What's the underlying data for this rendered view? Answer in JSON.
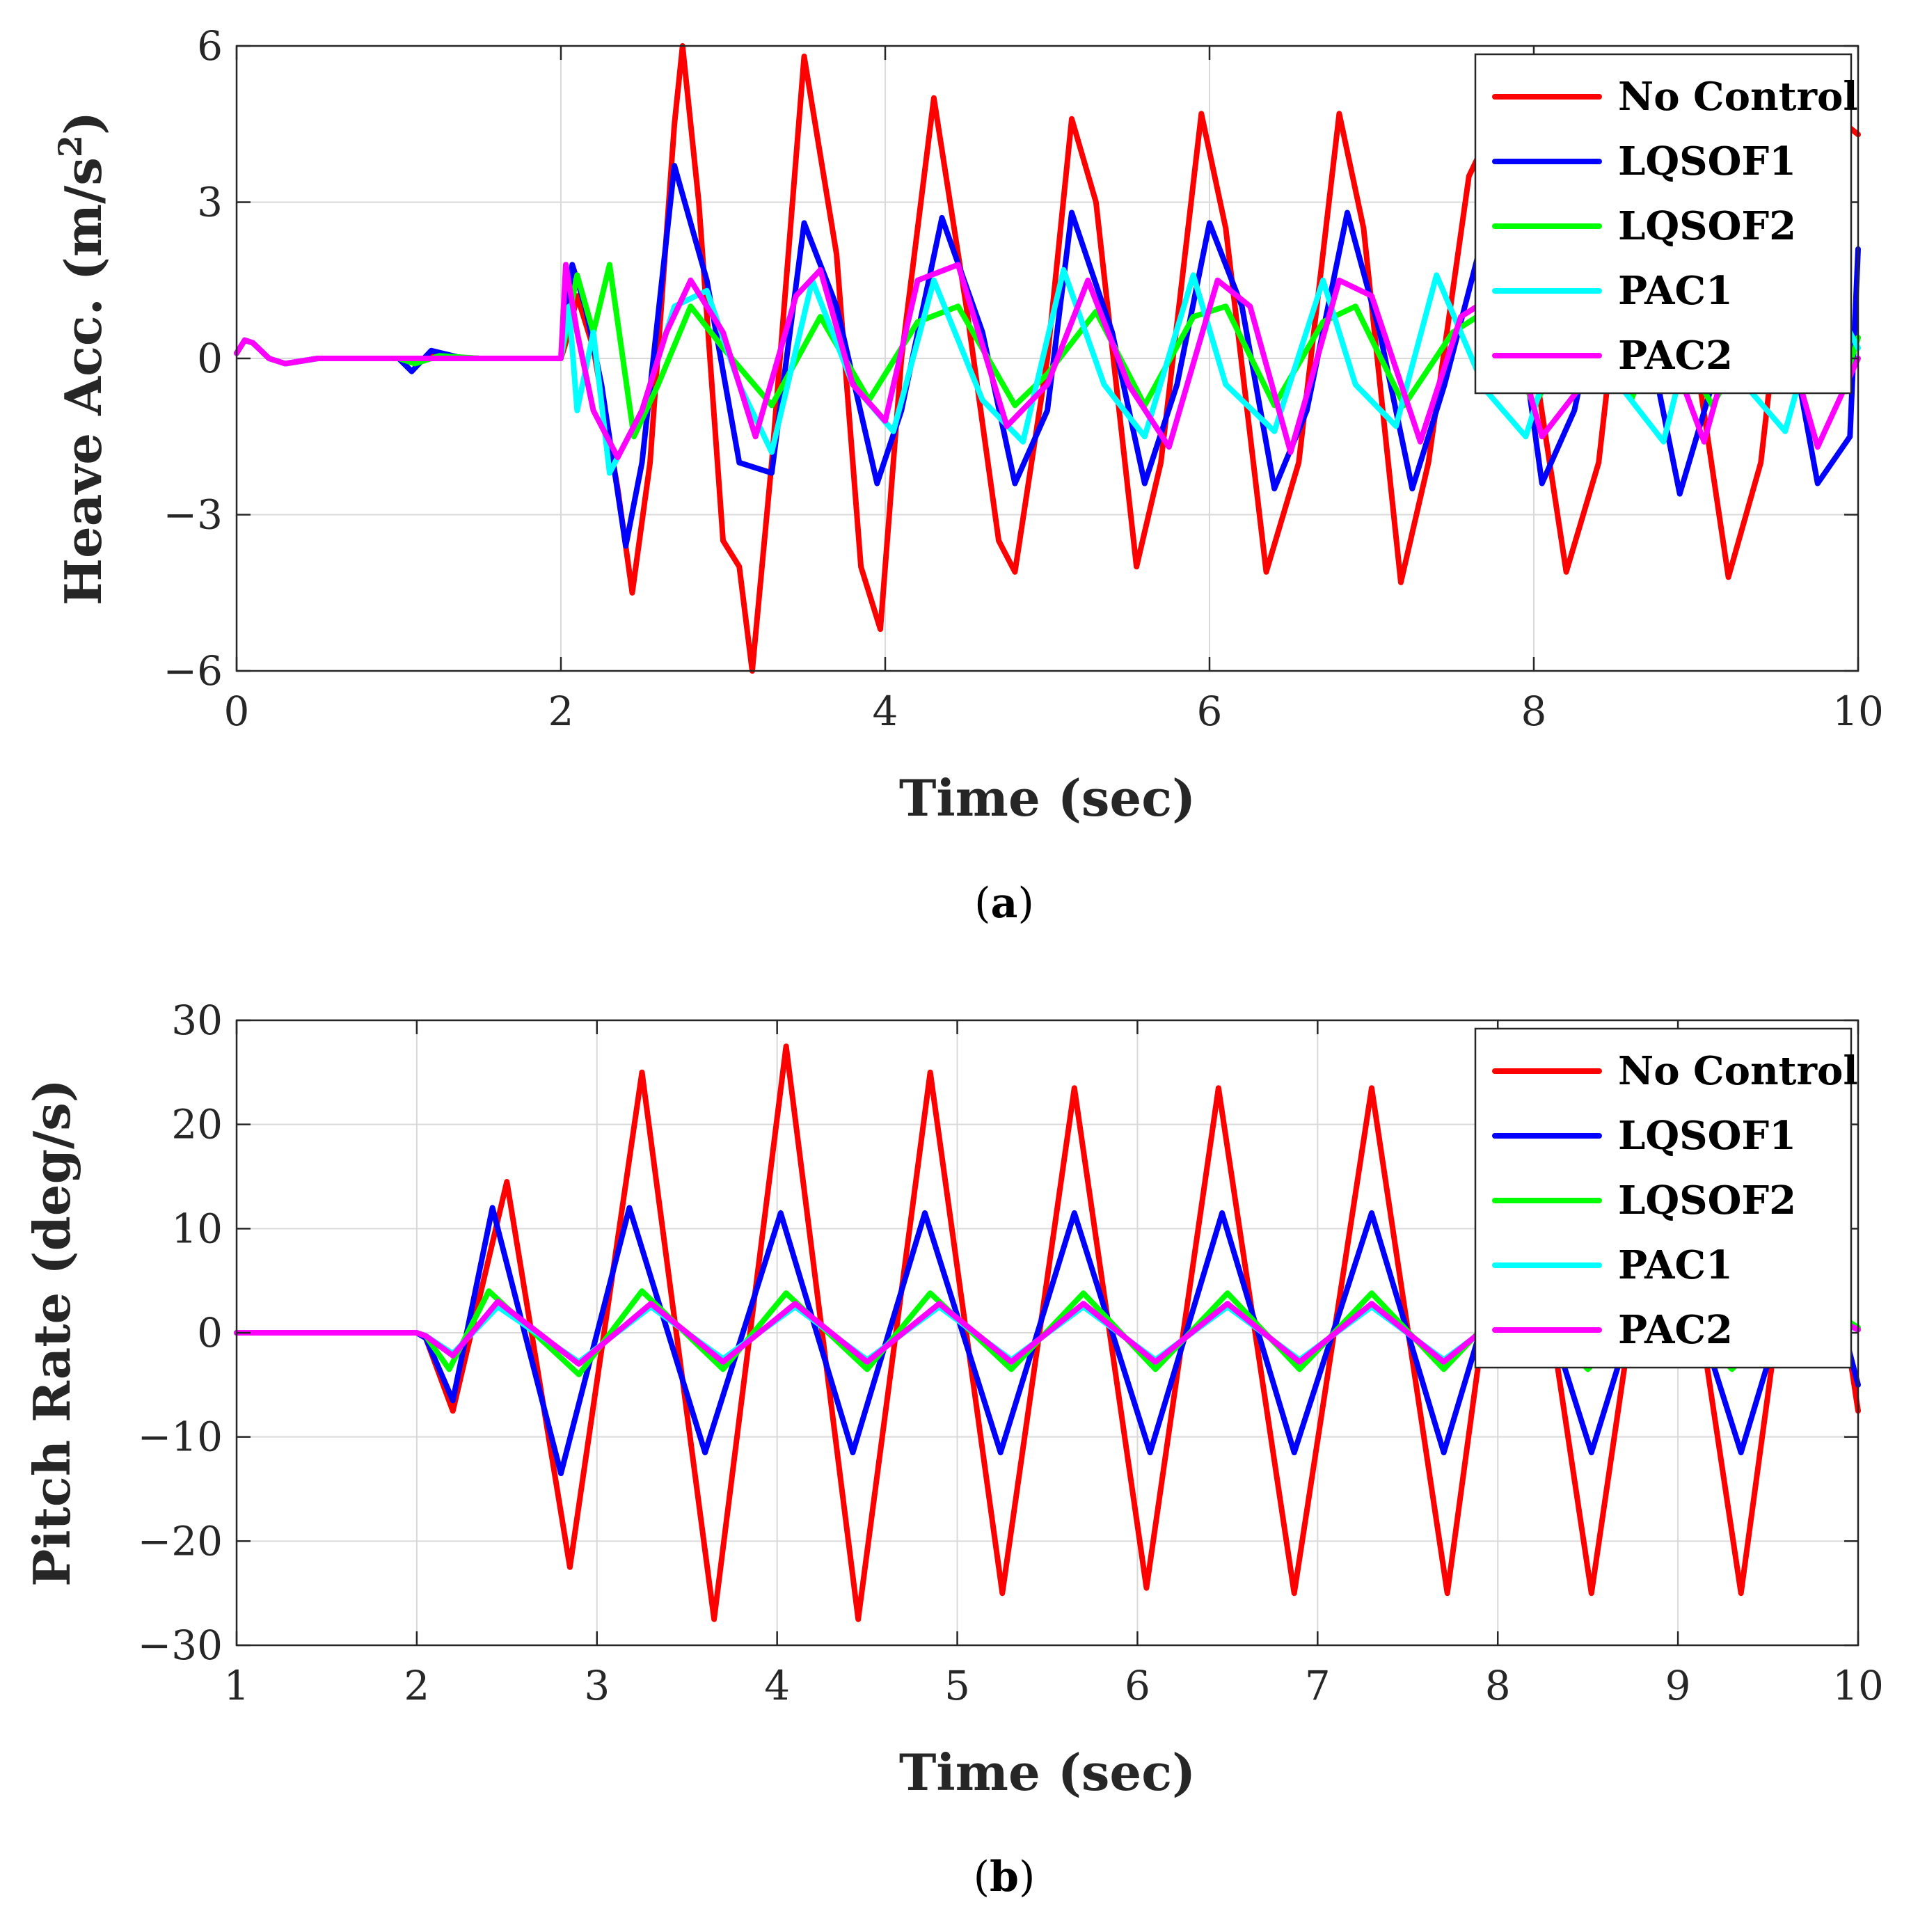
{
  "chart_data": [
    {
      "id": "a",
      "type": "line",
      "caption": {
        "open": "(",
        "letter": "a",
        "close": ")"
      },
      "xlabel": "Time (sec)",
      "ylabel": "Heave Acc. (m/s",
      "ylabel_sup": "2",
      "ylabel_end": ")",
      "xlim": [
        0,
        10
      ],
      "ylim": [
        -6,
        6
      ],
      "xticks": [
        0,
        2,
        4,
        6,
        8,
        10
      ],
      "xtick_labels": [
        "0",
        "2",
        "4",
        "6",
        "8",
        "10"
      ],
      "yticks": [
        -6,
        -3,
        0,
        3,
        6
      ],
      "ytick_labels": [
        "−6",
        "−3",
        "0",
        "3",
        "6"
      ],
      "grid": true,
      "legend_position": "top-right",
      "series": [
        {
          "name": "No Control",
          "color": "#ff0000",
          "x": [
            0,
            0.05,
            0.1,
            0.2,
            0.3,
            0.5,
            1.0,
            1.1,
            1.2,
            1.5,
            2.0,
            2.05,
            2.1,
            2.2,
            2.35,
            2.44,
            2.55,
            2.7,
            2.75,
            2.85,
            3.0,
            3.1,
            3.18,
            3.3,
            3.5,
            3.7,
            3.85,
            3.97,
            4.1,
            4.3,
            4.5,
            4.7,
            4.8,
            5.0,
            5.15,
            5.3,
            5.55,
            5.7,
            5.95,
            6.1,
            6.35,
            6.55,
            6.8,
            6.95,
            7.18,
            7.35,
            7.6,
            7.8,
            8.0,
            8.2,
            8.4,
            8.6,
            8.8,
            9.0,
            9.2,
            9.4,
            9.6,
            9.8,
            10.0
          ],
          "y": [
            0.1,
            0.35,
            0.3,
            0.0,
            -0.1,
            0.0,
            0.0,
            -0.1,
            0.05,
            0.0,
            0.0,
            0.5,
            1.2,
            0.2,
            -2.5,
            -4.5,
            -2.0,
            4.5,
            6.0,
            3.0,
            -3.5,
            -4.0,
            -6.0,
            -2.0,
            5.8,
            2.0,
            -4.0,
            -5.2,
            0.0,
            5.0,
            1.0,
            -3.5,
            -4.1,
            0.0,
            4.6,
            3.0,
            -4.0,
            -2.0,
            4.7,
            2.5,
            -4.1,
            -2.0,
            4.7,
            2.5,
            -4.3,
            -2.0,
            3.5,
            4.8,
            0.0,
            -4.1,
            -2.0,
            3.5,
            4.8,
            0.0,
            -4.2,
            -2.0,
            3.5,
            4.8,
            4.3
          ]
        },
        {
          "name": "LQSOF1",
          "color": "#0000ff",
          "x": [
            0,
            0.05,
            0.1,
            0.2,
            0.3,
            0.5,
            1.0,
            1.08,
            1.2,
            1.4,
            2.0,
            2.07,
            2.15,
            2.25,
            2.4,
            2.5,
            2.7,
            2.9,
            3.1,
            3.3,
            3.5,
            3.7,
            3.95,
            4.1,
            4.35,
            4.6,
            4.8,
            5.0,
            5.15,
            5.4,
            5.6,
            5.8,
            6.0,
            6.2,
            6.4,
            6.6,
            6.85,
            7.05,
            7.25,
            7.45,
            7.7,
            7.9,
            8.05,
            8.25,
            8.5,
            8.7,
            8.9,
            9.1,
            9.35,
            9.55,
            9.75,
            9.95,
            10.0
          ],
          "y": [
            0.1,
            0.35,
            0.3,
            0.0,
            -0.1,
            0.0,
            0.0,
            -0.25,
            0.15,
            0.0,
            0.0,
            1.8,
            1.0,
            -0.5,
            -3.6,
            -2.0,
            3.7,
            1.5,
            -2.0,
            -2.2,
            2.6,
            1.0,
            -2.4,
            -1.0,
            2.7,
            0.5,
            -2.4,
            -1.0,
            2.8,
            0.5,
            -2.4,
            -0.5,
            2.6,
            1.0,
            -2.5,
            -1.0,
            2.8,
            0.5,
            -2.5,
            -0.5,
            2.5,
            1.0,
            -2.4,
            -1.0,
            2.7,
            0.5,
            -2.6,
            -0.5,
            2.5,
            1.0,
            -2.4,
            -1.5,
            2.1
          ]
        },
        {
          "name": "LQSOF2",
          "color": "#00ff00",
          "x": [
            0,
            0.05,
            0.1,
            0.2,
            0.3,
            0.5,
            1.0,
            1.1,
            1.25,
            1.5,
            2.0,
            2.1,
            2.2,
            2.3,
            2.45,
            2.6,
            2.8,
            3.0,
            3.3,
            3.6,
            3.9,
            4.2,
            4.45,
            4.8,
            5.0,
            5.3,
            5.6,
            5.9,
            6.1,
            6.4,
            6.7,
            6.9,
            7.2,
            7.5,
            7.75,
            8.0,
            8.3,
            8.6,
            8.8,
            9.1,
            9.4,
            9.6,
            9.9,
            10.0
          ],
          "y": [
            0.1,
            0.35,
            0.3,
            0.0,
            -0.1,
            0.0,
            0.0,
            -0.1,
            0.05,
            0.0,
            0.0,
            1.6,
            0.5,
            1.8,
            -1.5,
            -0.5,
            1.0,
            0.2,
            -0.9,
            0.8,
            -0.8,
            0.7,
            1.0,
            -0.9,
            -0.3,
            0.9,
            -0.9,
            0.8,
            1.0,
            -0.9,
            0.7,
            1.0,
            -0.9,
            0.5,
            1.0,
            -0.9,
            0.7,
            -0.8,
            0.8,
            -0.9,
            0.7,
            0.9,
            -0.6,
            0.4
          ]
        },
        {
          "name": "PAC1",
          "color": "#00ffff",
          "x": [
            0,
            0.05,
            0.1,
            0.2,
            0.3,
            0.5,
            1.0,
            2.0,
            2.05,
            2.1,
            2.2,
            2.3,
            2.5,
            2.7,
            2.9,
            3.1,
            3.3,
            3.55,
            3.8,
            4.05,
            4.3,
            4.6,
            4.85,
            5.1,
            5.35,
            5.6,
            5.9,
            6.1,
            6.4,
            6.7,
            6.9,
            7.15,
            7.4,
            7.7,
            7.95,
            8.25,
            8.5,
            8.8,
            9.05,
            9.3,
            9.55,
            9.8,
            10.0
          ],
          "y": [
            0.1,
            0.35,
            0.3,
            0.0,
            -0.1,
            0.0,
            0.0,
            0.0,
            1.0,
            -1.0,
            0.5,
            -2.2,
            -1.0,
            1.0,
            1.3,
            -0.5,
            -1.8,
            1.5,
            -0.5,
            -1.4,
            1.5,
            -0.8,
            -1.6,
            1.7,
            -0.5,
            -1.5,
            1.6,
            -0.5,
            -1.4,
            1.5,
            -0.5,
            -1.3,
            1.6,
            -0.6,
            -1.5,
            1.5,
            -0.4,
            -1.6,
            1.5,
            -0.5,
            -1.4,
            1.4,
            0.2
          ]
        },
        {
          "name": "PAC2",
          "color": "#ff00ff",
          "x": [
            0,
            0.05,
            0.1,
            0.2,
            0.3,
            0.5,
            1.0,
            2.0,
            2.03,
            2.1,
            2.2,
            2.35,
            2.5,
            2.65,
            2.8,
            3.0,
            3.2,
            3.45,
            3.6,
            3.8,
            4.0,
            4.2,
            4.45,
            4.75,
            5.0,
            5.25,
            5.5,
            5.75,
            6.05,
            6.25,
            6.5,
            6.8,
            7.0,
            7.3,
            7.55,
            7.8,
            8.05,
            8.3,
            8.6,
            8.8,
            9.05,
            9.3,
            9.55,
            9.75,
            10.0
          ],
          "y": [
            0.1,
            0.35,
            0.3,
            0.0,
            -0.1,
            0.0,
            0.0,
            0.0,
            1.8,
            0.5,
            -1.0,
            -1.9,
            -1.0,
            0.5,
            1.5,
            0.5,
            -1.5,
            1.2,
            1.7,
            -0.5,
            -1.2,
            1.5,
            1.8,
            -1.3,
            -0.5,
            1.5,
            -0.5,
            -1.7,
            1.5,
            1.0,
            -1.8,
            1.5,
            1.2,
            -1.6,
            0.8,
            1.3,
            -1.5,
            -0.5,
            1.3,
            0.5,
            -1.6,
            1.2,
            0.5,
            -1.7,
            0.0
          ]
        }
      ]
    },
    {
      "id": "b",
      "type": "line",
      "caption": {
        "open": "(",
        "letter": "b",
        "close": ")"
      },
      "xlabel": "Time (sec)",
      "ylabel": "Pitch Rate (deg/s)",
      "xlim": [
        1,
        10
      ],
      "ylim": [
        -30,
        30
      ],
      "xticks": [
        1,
        2,
        3,
        4,
        5,
        6,
        7,
        8,
        9,
        10
      ],
      "xtick_labels": [
        "1",
        "2",
        "3",
        "4",
        "5",
        "6",
        "7",
        "8",
        "9",
        "10"
      ],
      "yticks": [
        -30,
        -20,
        -10,
        0,
        10,
        20,
        30
      ],
      "ytick_labels": [
        "−30",
        "−20",
        "−10",
        "0",
        "10",
        "20",
        "30"
      ],
      "grid": true,
      "legend_position": "top-right",
      "series": [
        {
          "name": "No Control",
          "color": "#ff0000",
          "x": [
            1.0,
            1.5,
            2.0,
            2.05,
            2.2,
            2.5,
            2.85,
            3.25,
            3.65,
            4.05,
            4.45,
            4.85,
            5.25,
            5.65,
            6.05,
            6.45,
            6.87,
            7.3,
            7.72,
            8.1,
            8.52,
            8.93,
            9.35,
            9.73,
            10.0
          ],
          "y": [
            0,
            0,
            0,
            -0.5,
            -7.5,
            14.5,
            -22.5,
            25.0,
            -27.5,
            27.5,
            -27.5,
            25.0,
            -25.0,
            23.5,
            -24.5,
            23.5,
            -25.0,
            23.5,
            -25.0,
            23.5,
            -25.0,
            23.5,
            -25.0,
            23.5,
            -7.5
          ]
        },
        {
          "name": "LQSOF1",
          "color": "#0000ff",
          "x": [
            1.0,
            1.5,
            2.0,
            2.05,
            2.2,
            2.42,
            2.8,
            3.18,
            3.6,
            4.02,
            4.42,
            4.82,
            5.24,
            5.65,
            6.07,
            6.47,
            6.87,
            7.3,
            7.7,
            8.1,
            8.52,
            8.93,
            9.35,
            9.75,
            10.0
          ],
          "y": [
            0,
            0,
            0,
            -0.5,
            -6.5,
            12.0,
            -13.5,
            12.0,
            -11.5,
            11.5,
            -11.5,
            11.5,
            -11.5,
            11.5,
            -11.5,
            11.5,
            -11.5,
            11.5,
            -11.5,
            11.5,
            -11.5,
            11.5,
            -11.5,
            11.5,
            -5.0
          ]
        },
        {
          "name": "LQSOF2",
          "color": "#00ff00",
          "x": [
            1.0,
            1.5,
            2.0,
            2.05,
            2.18,
            2.4,
            2.9,
            3.25,
            3.7,
            4.05,
            4.5,
            4.85,
            5.3,
            5.7,
            6.1,
            6.5,
            6.9,
            7.3,
            7.7,
            8.1,
            8.5,
            8.9,
            9.3,
            9.7,
            10.0
          ],
          "y": [
            0,
            0,
            0,
            -0.3,
            -3.5,
            4.0,
            -4.0,
            4.0,
            -3.5,
            3.8,
            -3.5,
            3.8,
            -3.5,
            3.8,
            -3.5,
            3.8,
            -3.5,
            3.8,
            -3.5,
            3.8,
            -3.5,
            3.8,
            -3.5,
            3.8,
            0.5
          ]
        },
        {
          "name": "PAC1",
          "color": "#00ffff",
          "x": [
            1.0,
            1.5,
            2.0,
            2.05,
            2.2,
            2.45,
            2.9,
            3.3,
            3.7,
            4.1,
            4.5,
            4.9,
            5.3,
            5.7,
            6.1,
            6.5,
            6.9,
            7.3,
            7.7,
            8.1,
            8.5,
            8.9,
            9.3,
            9.7,
            10.0
          ],
          "y": [
            0,
            0,
            0,
            -0.3,
            -2.0,
            2.5,
            -2.8,
            2.5,
            -2.5,
            2.5,
            -2.6,
            2.5,
            -2.6,
            2.5,
            -2.6,
            2.5,
            -2.6,
            2.5,
            -2.6,
            2.5,
            -2.6,
            2.5,
            -2.6,
            2.5,
            0.3
          ]
        },
        {
          "name": "PAC2",
          "color": "#ff00ff",
          "x": [
            1.0,
            1.5,
            2.0,
            2.05,
            2.2,
            2.45,
            2.9,
            3.3,
            3.7,
            4.1,
            4.5,
            4.9,
            5.3,
            5.7,
            6.1,
            6.5,
            6.9,
            7.3,
            7.7,
            8.1,
            8.5,
            8.9,
            9.3,
            9.7,
            10.0
          ],
          "y": [
            0,
            0,
            0,
            -0.3,
            -2.2,
            3.0,
            -3.0,
            2.8,
            -2.8,
            2.8,
            -2.8,
            2.8,
            -2.8,
            2.8,
            -2.8,
            2.8,
            -2.8,
            2.8,
            -2.8,
            2.8,
            -2.8,
            2.8,
            -2.8,
            2.8,
            0.3
          ]
        }
      ]
    }
  ]
}
